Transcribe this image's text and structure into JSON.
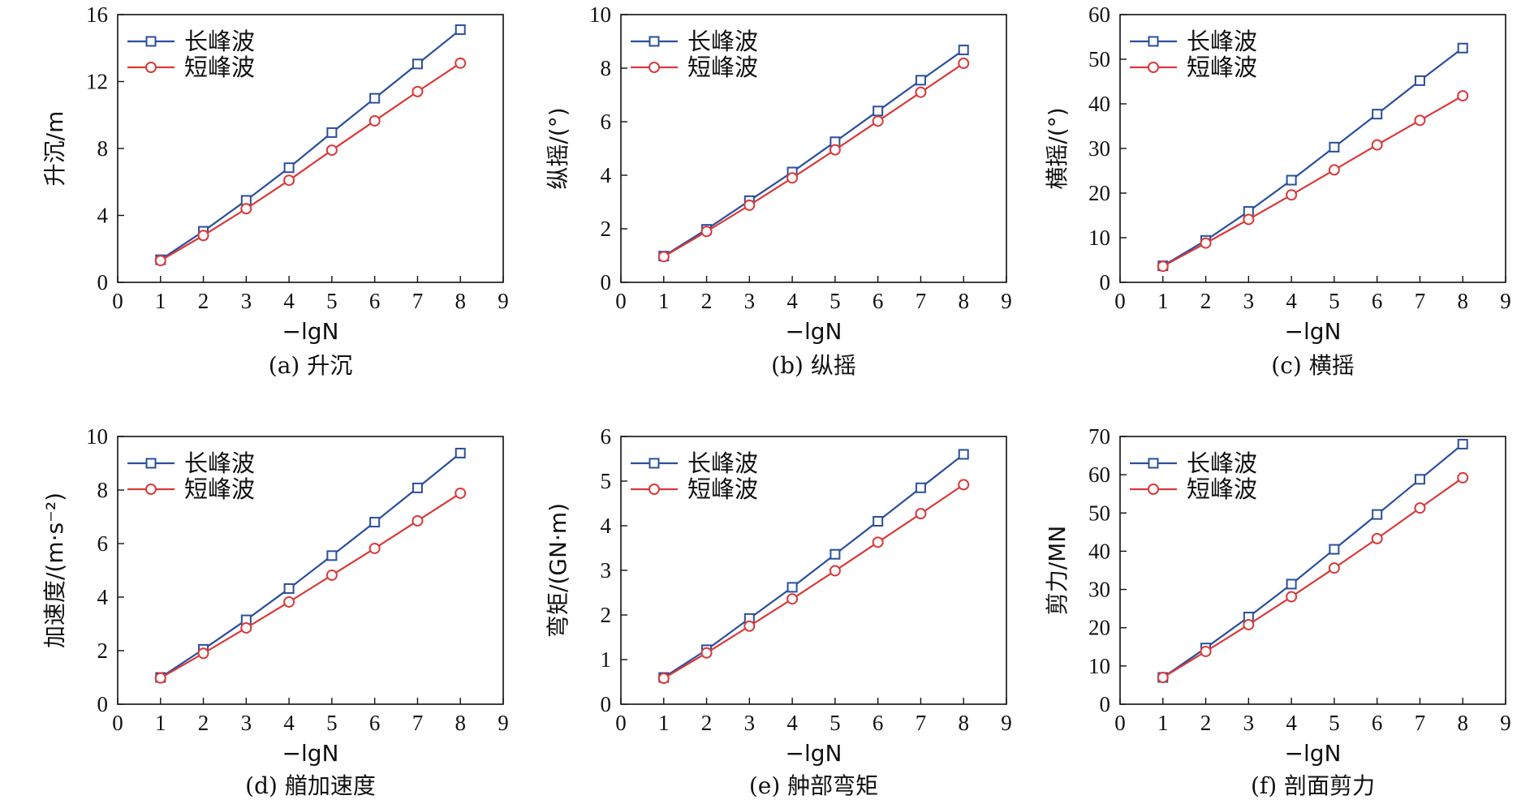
{
  "chart_data": [
    {
      "type": "line",
      "caption": "(a) 升沉",
      "xlabel": "−lgN",
      "ylabel": "升沉/m",
      "xlim": [
        0,
        9
      ],
      "ylim": [
        0,
        16
      ],
      "xticks": [
        0,
        1,
        2,
        3,
        4,
        5,
        6,
        7,
        8,
        9
      ],
      "yticks": [
        0,
        4,
        8,
        12,
        16
      ],
      "legend_position": "top-left",
      "x": [
        1,
        2,
        3,
        4,
        5,
        6,
        7,
        8
      ],
      "series": [
        {
          "name": "长峰波",
          "marker": "square",
          "color": "#2b4f9c",
          "values": [
            1.35,
            3.05,
            4.9,
            6.85,
            8.95,
            11.0,
            13.05,
            15.1
          ]
        },
        {
          "name": "短峰波",
          "marker": "circle",
          "color": "#d93a3a",
          "values": [
            1.3,
            2.8,
            4.4,
            6.1,
            7.9,
            9.65,
            11.4,
            13.1
          ]
        }
      ]
    },
    {
      "type": "line",
      "caption": "(b) 纵摇",
      "xlabel": "−lgN",
      "ylabel": "纵摇/(°)",
      "xlim": [
        0,
        9
      ],
      "ylim": [
        0,
        10
      ],
      "xticks": [
        0,
        1,
        2,
        3,
        4,
        5,
        6,
        7,
        8,
        9
      ],
      "yticks": [
        0,
        2,
        4,
        6,
        8,
        10
      ],
      "legend_position": "top-left",
      "x": [
        1,
        2,
        3,
        4,
        5,
        6,
        7,
        8
      ],
      "series": [
        {
          "name": "长峰波",
          "marker": "square",
          "color": "#2b4f9c",
          "values": [
            0.98,
            1.98,
            3.05,
            4.12,
            5.25,
            6.4,
            7.55,
            8.68
          ]
        },
        {
          "name": "短峰波",
          "marker": "circle",
          "color": "#d93a3a",
          "values": [
            0.96,
            1.9,
            2.88,
            3.9,
            4.95,
            6.02,
            7.1,
            8.18
          ]
        }
      ]
    },
    {
      "type": "line",
      "caption": "(c) 横摇",
      "xlabel": "−lgN",
      "ylabel": "横摇/(°)",
      "xlim": [
        0,
        9
      ],
      "ylim": [
        0,
        60
      ],
      "xticks": [
        0,
        1,
        2,
        3,
        4,
        5,
        6,
        7,
        8,
        9
      ],
      "yticks": [
        0,
        10,
        20,
        30,
        40,
        50,
        60
      ],
      "legend_position": "top-left",
      "x": [
        1,
        2,
        3,
        4,
        5,
        6,
        7,
        8
      ],
      "series": [
        {
          "name": "长峰波",
          "marker": "square",
          "color": "#2b4f9c",
          "values": [
            3.7,
            9.4,
            15.9,
            22.9,
            30.3,
            37.7,
            45.2,
            52.5
          ]
        },
        {
          "name": "短峰波",
          "marker": "circle",
          "color": "#d93a3a",
          "values": [
            3.6,
            8.8,
            14.1,
            19.6,
            25.2,
            30.8,
            36.3,
            41.8
          ]
        }
      ]
    },
    {
      "type": "line",
      "caption": "(d) 艏加速度",
      "xlabel": "−lgN",
      "ylabel": "加速度/(m·s⁻²)",
      "xlim": [
        0,
        9
      ],
      "ylim": [
        0,
        10
      ],
      "xticks": [
        0,
        1,
        2,
        3,
        4,
        5,
        6,
        7,
        8,
        9
      ],
      "yticks": [
        0,
        2,
        4,
        6,
        8,
        10
      ],
      "legend_position": "top-left",
      "x": [
        1,
        2,
        3,
        4,
        5,
        6,
        7,
        8
      ],
      "series": [
        {
          "name": "长峰波",
          "marker": "square",
          "color": "#2b4f9c",
          "values": [
            1.0,
            2.05,
            3.15,
            4.32,
            5.55,
            6.8,
            8.08,
            9.38
          ]
        },
        {
          "name": "短峰波",
          "marker": "circle",
          "color": "#d93a3a",
          "values": [
            0.98,
            1.9,
            2.85,
            3.82,
            4.82,
            5.82,
            6.85,
            7.88
          ]
        }
      ]
    },
    {
      "type": "line",
      "caption": "(e) 舯部弯矩",
      "xlabel": "−lgN",
      "ylabel": "弯矩/(GN·m)",
      "xlim": [
        0,
        9
      ],
      "ylim": [
        0,
        6
      ],
      "xticks": [
        0,
        1,
        2,
        3,
        4,
        5,
        6,
        7,
        8,
        9
      ],
      "yticks": [
        0,
        1,
        2,
        3,
        4,
        5,
        6
      ],
      "legend_position": "top-left",
      "x": [
        1,
        2,
        3,
        4,
        5,
        6,
        7,
        8
      ],
      "series": [
        {
          "name": "长峰波",
          "marker": "square",
          "color": "#2b4f9c",
          "values": [
            0.6,
            1.22,
            1.92,
            2.62,
            3.36,
            4.1,
            4.85,
            5.6
          ]
        },
        {
          "name": "短峰波",
          "marker": "circle",
          "color": "#d93a3a",
          "values": [
            0.58,
            1.15,
            1.75,
            2.36,
            2.99,
            3.63,
            4.27,
            4.92
          ]
        }
      ]
    },
    {
      "type": "line",
      "caption": "(f) 剖面剪力",
      "xlabel": "−lgN",
      "ylabel": "剪力/MN",
      "xlim": [
        0,
        9
      ],
      "ylim": [
        0,
        70
      ],
      "xticks": [
        0,
        1,
        2,
        3,
        4,
        5,
        6,
        7,
        8,
        9
      ],
      "yticks": [
        0,
        10,
        20,
        30,
        40,
        50,
        60,
        70
      ],
      "legend_position": "top-left",
      "x": [
        1,
        2,
        3,
        4,
        5,
        6,
        7,
        8
      ],
      "series": [
        {
          "name": "长峰波",
          "marker": "square",
          "color": "#2b4f9c",
          "values": [
            7.0,
            14.7,
            22.8,
            31.4,
            40.5,
            49.6,
            58.8,
            68.0
          ]
        },
        {
          "name": "短峰波",
          "marker": "circle",
          "color": "#d93a3a",
          "values": [
            7.0,
            13.8,
            20.8,
            28.1,
            35.6,
            43.3,
            51.3,
            59.2
          ]
        }
      ]
    }
  ]
}
